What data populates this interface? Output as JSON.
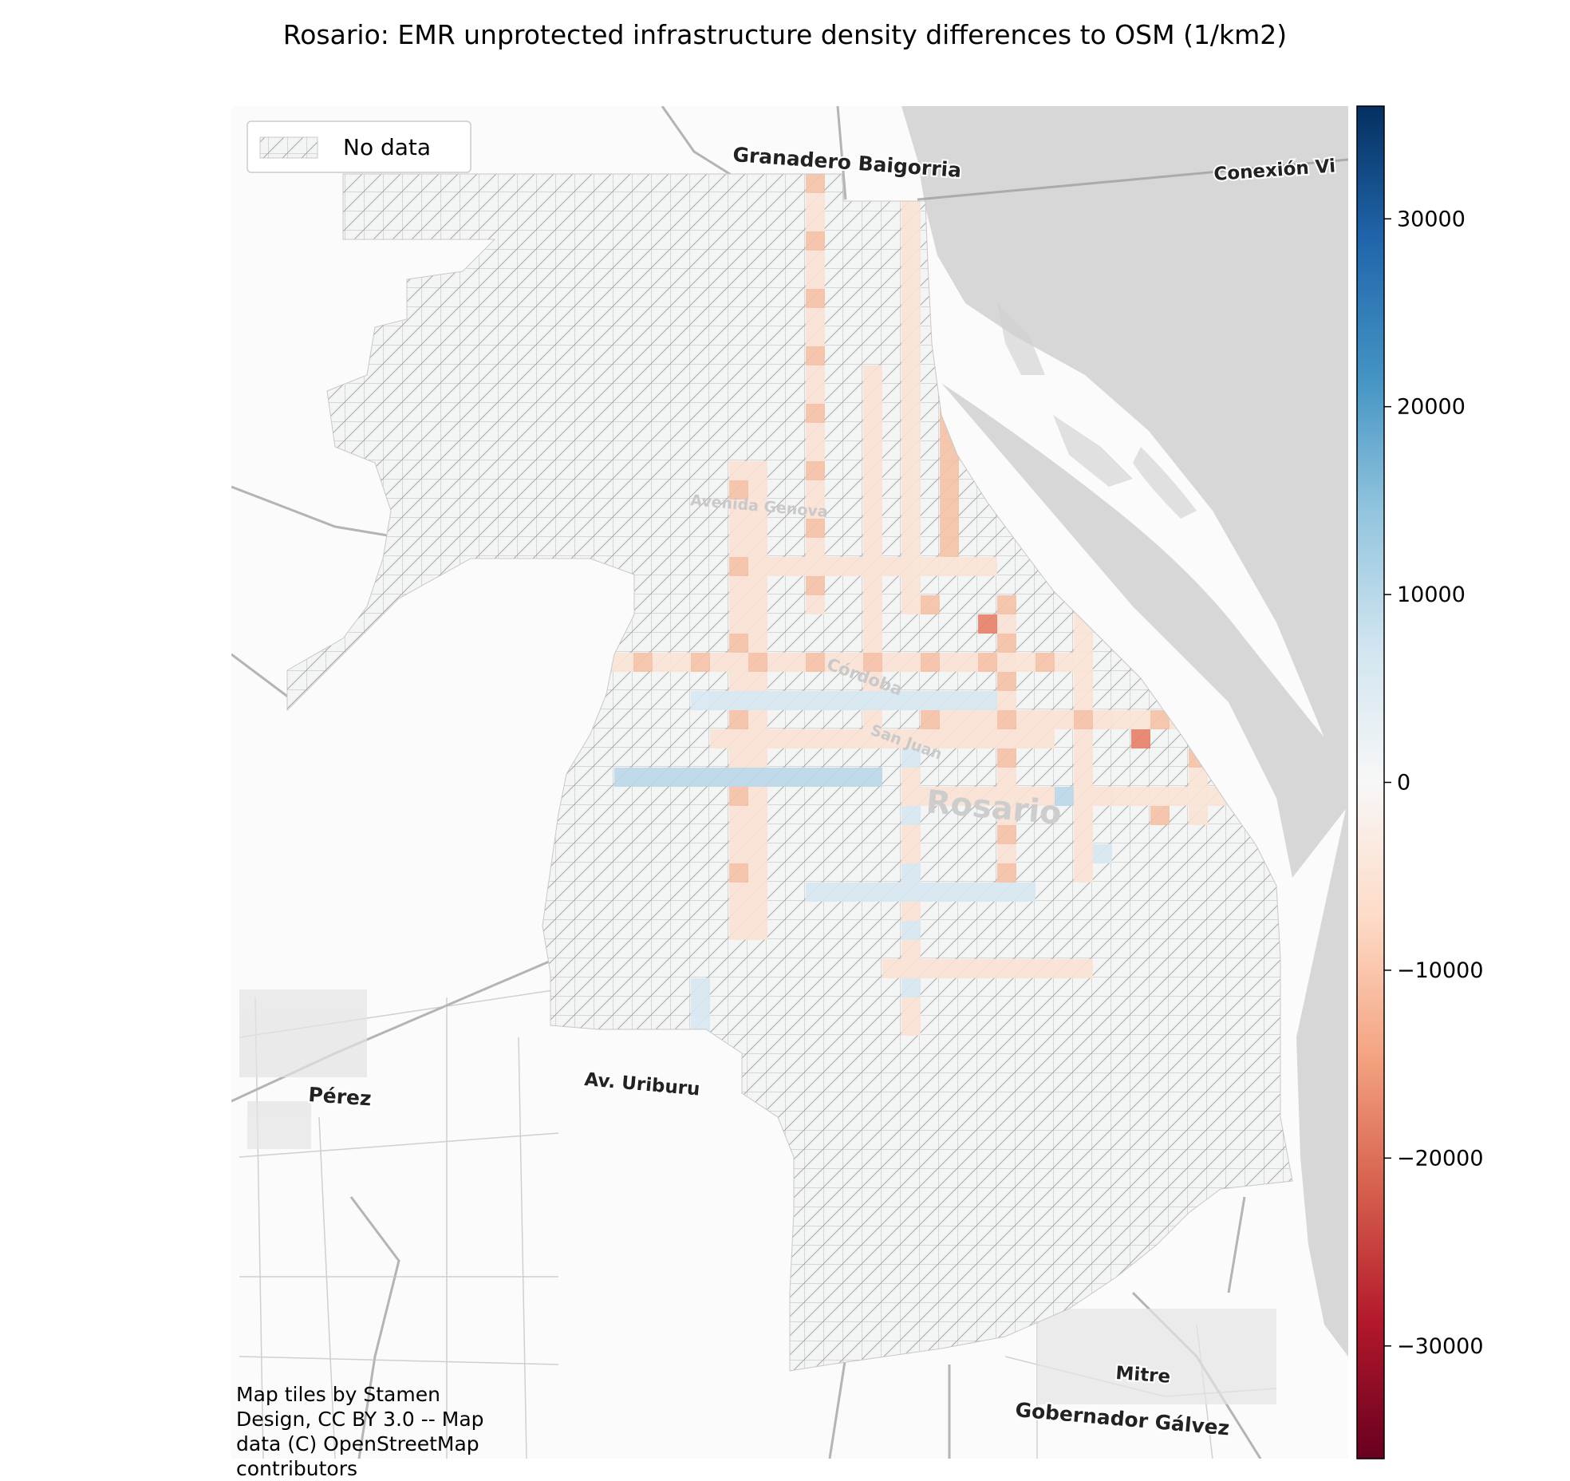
{
  "title": "Rosario: EMR unprotected infrastructure density differences to OSM (1/km2)",
  "legend": {
    "label": "No data"
  },
  "colorbar": {
    "cmap": "RdBu",
    "range": [
      -36000,
      36000
    ],
    "ticks": [
      {
        "value": 30000,
        "label": "30000"
      },
      {
        "value": 20000,
        "label": "20000"
      },
      {
        "value": 10000,
        "label": "10000"
      },
      {
        "value": 0,
        "label": "0"
      },
      {
        "value": -10000,
        "label": "−10000"
      },
      {
        "value": -20000,
        "label": "−20000"
      },
      {
        "value": -30000,
        "label": "−30000"
      }
    ]
  },
  "place_labels": [
    {
      "id": "granadero-baigorria",
      "text": "Granadero Baigorria"
    },
    {
      "id": "conexion",
      "text": "Conexión Vi"
    },
    {
      "id": "perez",
      "text": "Pérez"
    },
    {
      "id": "av-uriburu",
      "text": "Av. Uriburu"
    },
    {
      "id": "rosario",
      "text": "Rosario"
    },
    {
      "id": "mitre",
      "text": "Mitre"
    },
    {
      "id": "gobernador-galvez",
      "text": "Gobernador Gálvez"
    },
    {
      "id": "avenida-genova",
      "text": "Avenida Genova"
    },
    {
      "id": "cordoba",
      "text": "Córdoba"
    },
    {
      "id": "san-juan",
      "text": "San Juan"
    }
  ],
  "attribution": "Map tiles by Stamen\nDesign, CC BY 3.0 -- Map\ndata (C) OpenStreetMap\ncontributors"
}
